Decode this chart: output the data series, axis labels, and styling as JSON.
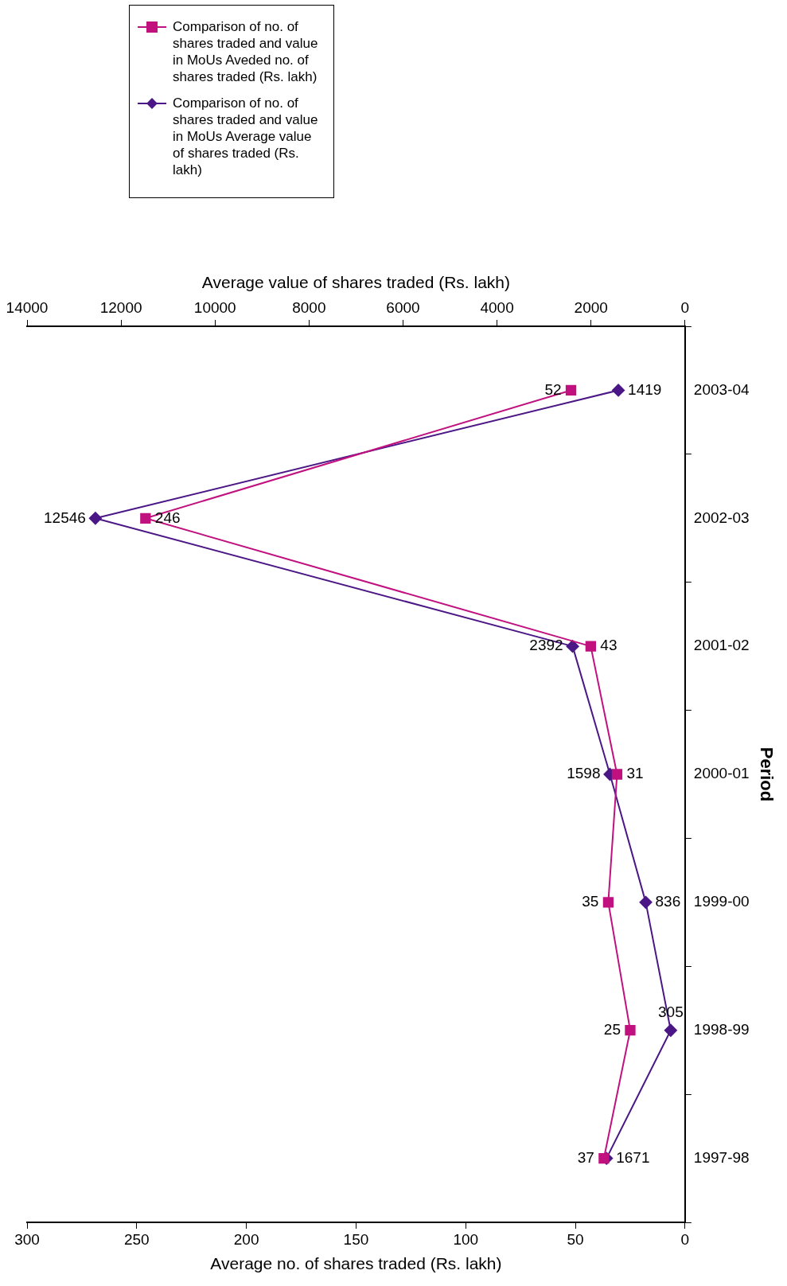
{
  "chart_data": {
    "type": "line",
    "orientation": "horizontal",
    "ylabel": "Period",
    "xlabel": "Average no. of shares traded (Rs. lakh)",
    "x2label": "Average value of shares traded (Rs. lakh)",
    "categories": [
      "2003-04",
      "2002-03",
      "2001-02",
      "2000-01",
      "1999-00",
      "1998-99",
      "1997-98"
    ],
    "series": [
      {
        "name": "Comparison of no. of shares traded and value in MoUs Aveded no. of shares traded (Rs. lakh)",
        "color": "#c0117f",
        "marker": "square",
        "values": [
          52,
          246,
          43,
          31,
          35,
          25,
          37
        ]
      },
      {
        "name": "Comparison of no. of shares traded and value in MoUs Average value of shares traded (Rs. lakh)",
        "color": "#4b1786",
        "marker": "diamond",
        "axis": "x2",
        "values": [
          1419,
          12546,
          2392,
          1598,
          836,
          305,
          1671
        ]
      }
    ],
    "xlim": [
      300,
      0
    ],
    "xticks": [
      300,
      250,
      200,
      150,
      100,
      50,
      0
    ],
    "x2lim": [
      14000,
      0
    ],
    "x2ticks": [
      14000,
      12000,
      10000,
      8000,
      6000,
      4000,
      2000,
      0
    ],
    "grid": false,
    "legend": "top left",
    "data_labels": true,
    "line_style": "solid"
  }
}
